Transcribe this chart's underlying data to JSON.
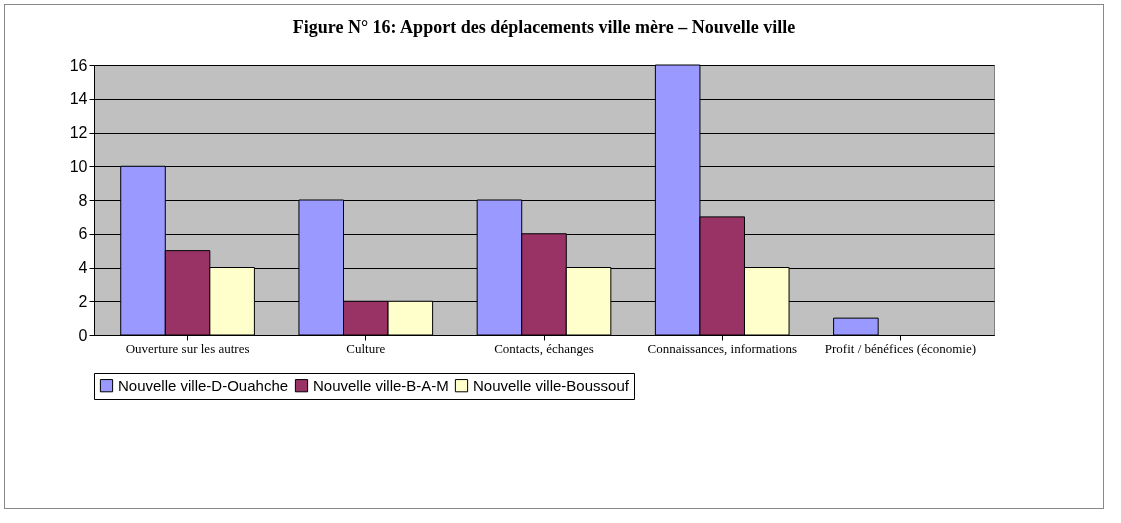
{
  "chart_data": {
    "type": "bar",
    "title": "Figure N° 16: Apport des déplacements ville mère –  Nouvelle ville",
    "categories": [
      "Ouverture sur les autres",
      "Culture",
      "Contacts, échanges",
      "Connaissances, informations",
      "Profit / bénéfices (économie)"
    ],
    "series": [
      {
        "name": "Nouvelle ville-D-Ouahche",
        "color": "#9999ff",
        "values": [
          10,
          8,
          8,
          16,
          1
        ]
      },
      {
        "name": "Nouvelle ville-B-A-M",
        "color": "#993366",
        "values": [
          5,
          2,
          6,
          7,
          null
        ]
      },
      {
        "name": "Nouvelle ville-Boussouf",
        "color": "#ffffcc",
        "values": [
          4,
          2,
          4,
          4,
          null
        ]
      }
    ],
    "ylim": [
      0,
      16
    ],
    "yticks": [
      0,
      2,
      4,
      6,
      8,
      10,
      12,
      14,
      16
    ],
    "grid": "y",
    "legend": "bottom"
  }
}
